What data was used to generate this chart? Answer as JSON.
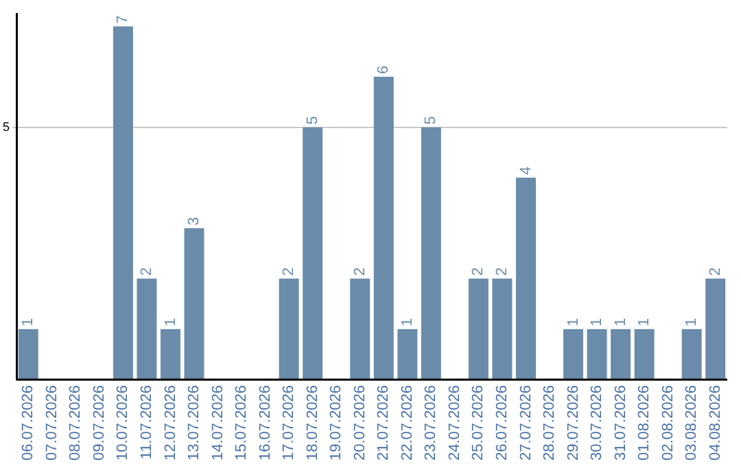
{
  "chart_data": {
    "type": "bar",
    "categories": [
      "06.07.2026",
      "07.07.2026",
      "08.07.2026",
      "09.07.2026",
      "10.07.2026",
      "11.07.2026",
      "12.07.2026",
      "13.07.2026",
      "14.07.2026",
      "15.07.2026",
      "16.07.2026",
      "17.07.2026",
      "18.07.2026",
      "19.07.2026",
      "20.07.2026",
      "21.07.2026",
      "22.07.2026",
      "23.07.2026",
      "24.07.2026",
      "25.07.2026",
      "26.07.2026",
      "27.07.2026",
      "28.07.2026",
      "29.07.2026",
      "30.07.2026",
      "31.07.2026",
      "01.08.2026",
      "02.08.2026",
      "03.08.2026",
      "04.08.2026"
    ],
    "values": [
      1,
      0,
      0,
      0,
      7,
      2,
      1,
      3,
      0,
      0,
      0,
      2,
      5,
      0,
      2,
      6,
      1,
      5,
      0,
      2,
      2,
      4,
      0,
      1,
      1,
      1,
      1,
      0,
      1,
      2
    ],
    "value_labels": [
      "1",
      null,
      null,
      null,
      "7",
      "2",
      "1",
      "3",
      null,
      null,
      null,
      "2",
      "5",
      null,
      "2",
      "6",
      "1",
      "5",
      null,
      "2",
      "2",
      "4",
      null,
      "1",
      "1",
      "1",
      "1",
      null,
      "1",
      "2"
    ],
    "color": "#6a8caa",
    "ylim": [
      0,
      7.25
    ],
    "yticks": [
      5
    ],
    "grid": "y",
    "legend": false
  }
}
